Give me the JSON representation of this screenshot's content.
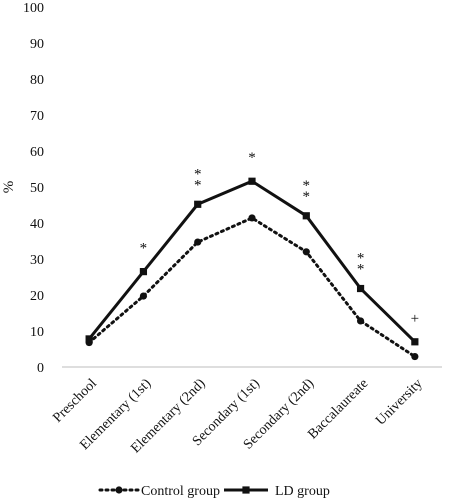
{
  "chart_data": {
    "type": "line",
    "title": "",
    "xlabel": "",
    "ylabel": "%",
    "ylim": [
      0,
      100
    ],
    "y_ticks": [
      "0",
      "10",
      "20",
      "30",
      "40",
      "50",
      "60",
      "70",
      "80",
      "90",
      "100"
    ],
    "grid": false,
    "legend_position": "bottom",
    "categories": [
      "Preschool",
      "Elementary (1st)",
      "Elementary (2nd)",
      "Secondary (1st)",
      "Secondary (2nd)",
      "Baccalaureate",
      "University"
    ],
    "series": [
      {
        "name": "Control group",
        "values": [
          6.8,
          19.7,
          34.7,
          41.4,
          32.0,
          12.8,
          2.9
        ],
        "line_style": "dotted",
        "marker": "circle",
        "color": "#111111"
      },
      {
        "name": "LD group",
        "values": [
          7.8,
          26.5,
          45.2,
          51.6,
          42.0,
          21.8,
          7.0
        ],
        "line_style": "solid",
        "marker": "square",
        "color": "#111111"
      }
    ],
    "annotations": [
      {
        "category_index": 1,
        "text": "*",
        "lines": 1
      },
      {
        "category_index": 2,
        "text": "**",
        "lines": 2
      },
      {
        "category_index": 3,
        "text": "*",
        "lines": 1
      },
      {
        "category_index": 4,
        "text": "**",
        "lines": 2
      },
      {
        "category_index": 5,
        "text": "**",
        "lines": 2
      },
      {
        "category_index": 6,
        "text": "+",
        "lines": 1
      }
    ]
  }
}
